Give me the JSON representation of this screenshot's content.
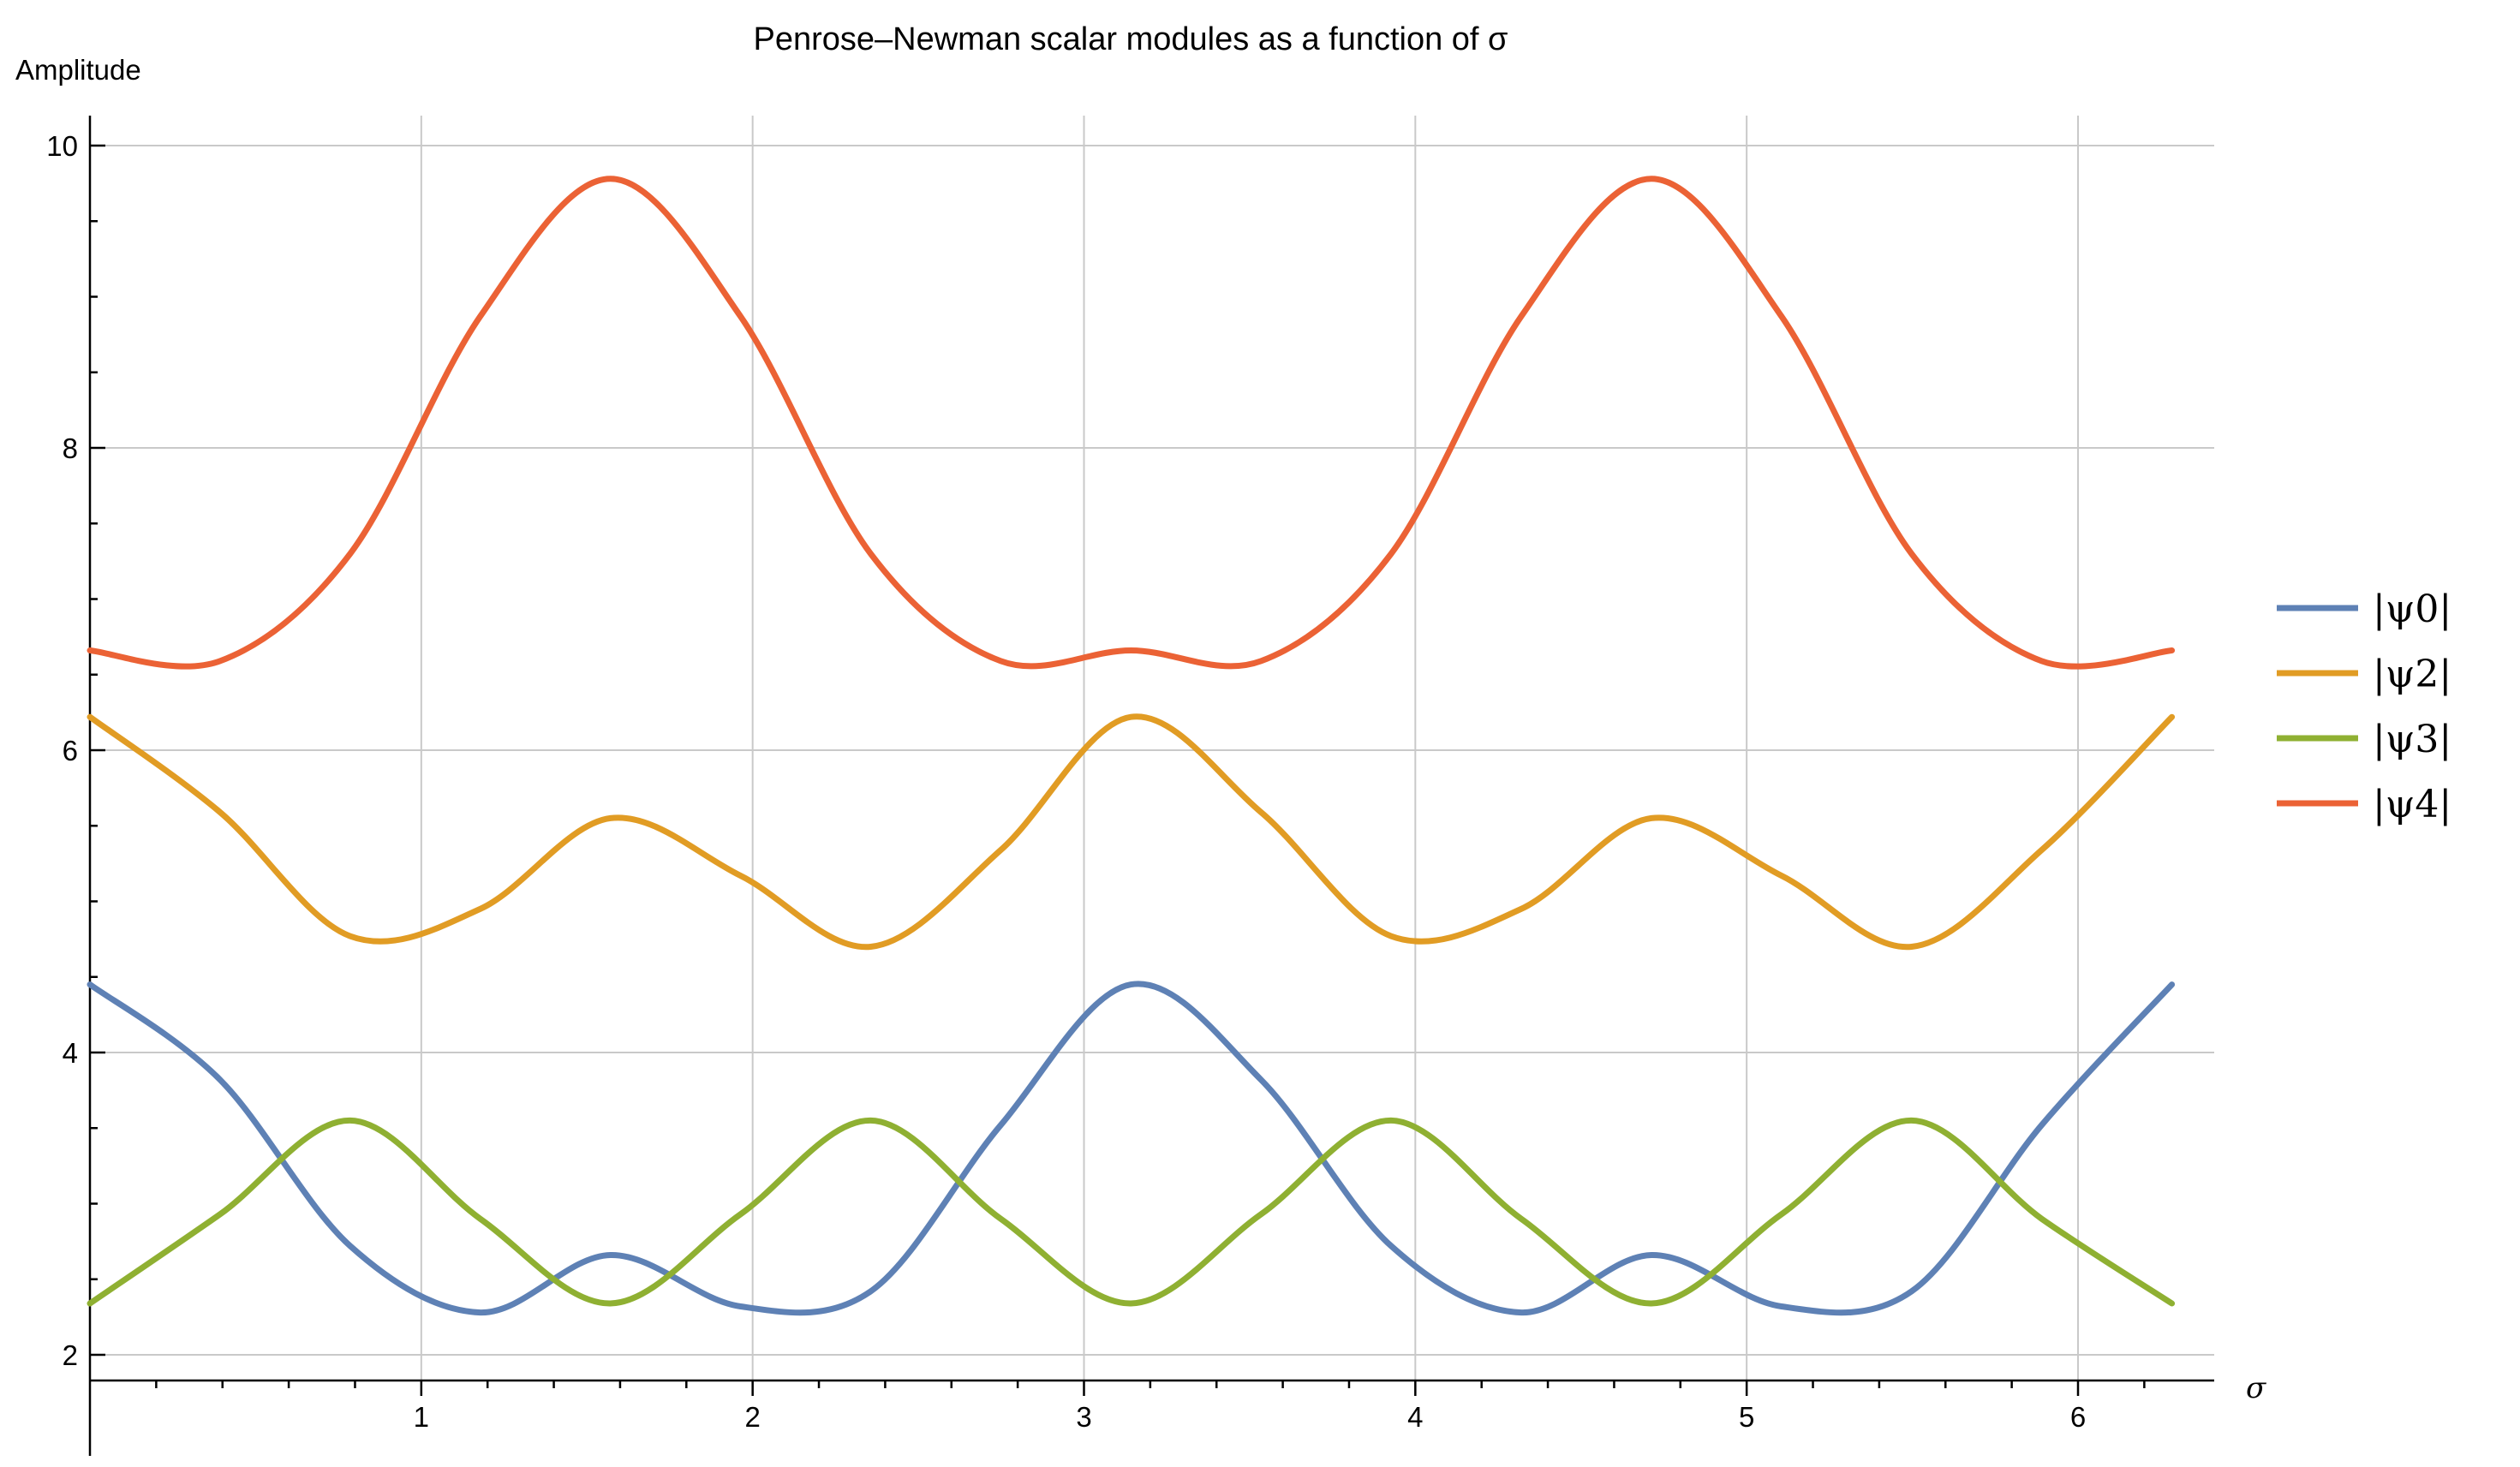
{
  "chart_data": {
    "type": "line",
    "title": "Penrose–Newman scalar modules as a function of σ",
    "xlabel": "σ",
    "ylabel": "Amplitude",
    "xlim": [
      0,
      6.2832
    ],
    "ylim": [
      2,
      10.2
    ],
    "x_ticks": [
      "1",
      "2",
      "3",
      "4",
      "5",
      "6"
    ],
    "y_ticks": [
      "2",
      "4",
      "6",
      "8",
      "10"
    ],
    "grid": true,
    "legend_position": "right",
    "x": [
      0,
      0.3927,
      0.7854,
      1.1781,
      1.5708,
      1.9635,
      2.3562,
      2.7489,
      3.1416,
      3.5343,
      3.927,
      4.3197,
      4.7124,
      5.1051,
      5.4978,
      5.8905,
      6.2832
    ],
    "series": [
      {
        "name": "|ψ0|",
        "color": "#5e81b5",
        "values": [
          4.45,
          3.82,
          2.72,
          2.28,
          2.66,
          2.32,
          2.42,
          3.52,
          4.45,
          3.82,
          2.72,
          2.28,
          2.66,
          2.32,
          2.42,
          3.52,
          4.45
        ]
      },
      {
        "name": "|ψ2|",
        "color": "#e19c24",
        "values": [
          6.22,
          5.59,
          4.77,
          4.95,
          5.55,
          5.17,
          4.7,
          5.34,
          6.22,
          5.59,
          4.77,
          4.95,
          5.55,
          5.17,
          4.7,
          5.34,
          6.22
        ]
      },
      {
        "name": "|ψ3|",
        "color": "#8fb032",
        "values": [
          2.34,
          2.93,
          3.55,
          2.9,
          2.34,
          2.93,
          3.55,
          2.9,
          2.34,
          2.93,
          3.55,
          2.9,
          2.34,
          2.93,
          3.55,
          2.9,
          2.34
        ]
      },
      {
        "name": "|ψ4|",
        "color": "#eb6235",
        "values": [
          6.66,
          6.59,
          7.3,
          8.87,
          9.78,
          8.87,
          7.3,
          6.59,
          6.66,
          6.59,
          7.3,
          8.87,
          9.78,
          8.87,
          7.3,
          6.59,
          6.66
        ]
      }
    ]
  }
}
